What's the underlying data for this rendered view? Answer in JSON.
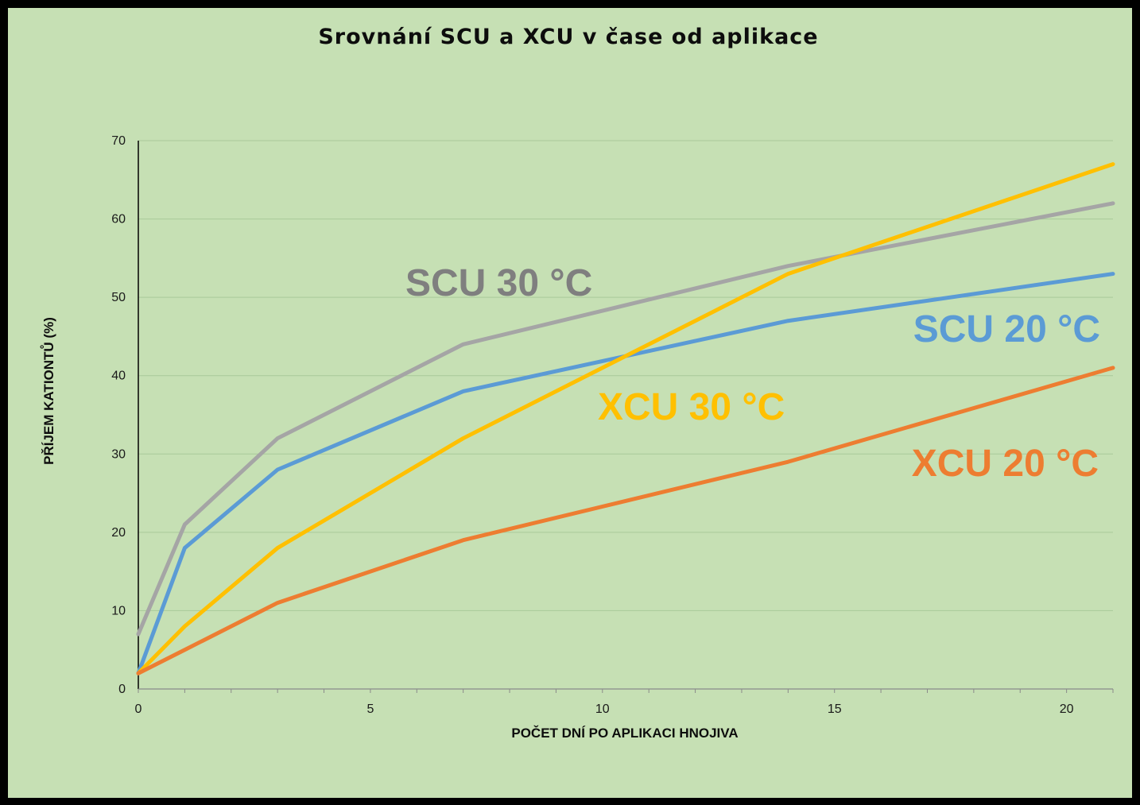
{
  "chart_data": {
    "type": "line",
    "title": "Srovnání SCU a XCU v čase od aplikace",
    "xlabel": "POČET DNÍ  PO APLIKACI HNOJIVA",
    "ylabel": "PŘÍJEM KATIONTŮ (%)",
    "xlim": [
      0,
      21
    ],
    "ylim": [
      0,
      70
    ],
    "x_ticks": [
      "0",
      "5",
      "10",
      "15",
      "20"
    ],
    "y_ticks": [
      "0",
      "10",
      "20",
      "30",
      "40",
      "50",
      "60",
      "70"
    ],
    "grid": "horizontal",
    "legend": "inline labels",
    "x": [
      0,
      1,
      3,
      7,
      14,
      21
    ],
    "series": [
      {
        "name": "SCU 30 °C",
        "values": [
          7,
          21,
          32,
          44,
          54,
          62
        ],
        "color": "#a5a5a5",
        "label_color": "#7f7f7f"
      },
      {
        "name": "SCU 20 °C",
        "values": [
          2,
          18,
          28,
          38,
          47,
          53
        ],
        "color": "#5b9bd5",
        "label_color": "#5b9bd5"
      },
      {
        "name": "XCU 30 °C",
        "values": [
          2,
          8,
          18,
          32,
          53,
          67
        ],
        "color": "#ffc000",
        "label_color": "#ffc000"
      },
      {
        "name": "XCU 20 °C",
        "values": [
          2,
          5,
          11,
          19,
          29,
          41
        ],
        "color": "#ed7d31",
        "label_color": "#ed7d31"
      }
    ]
  }
}
